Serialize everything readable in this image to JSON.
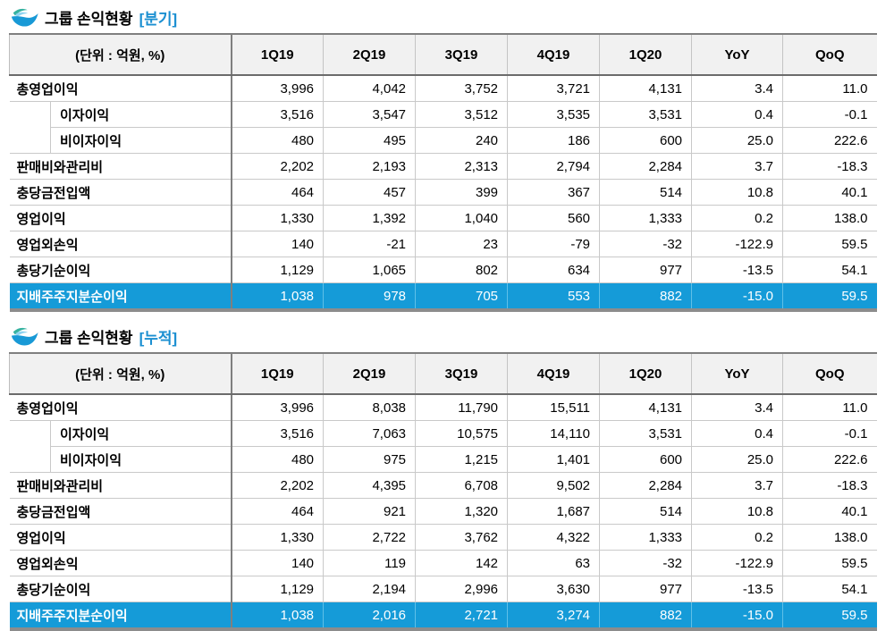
{
  "colors": {
    "highlight_row": "#159BD8",
    "tag_blue": "#1B8FD1",
    "header_bg": "#F1F1F1",
    "logo_blue": "#1899D6",
    "logo_teal": "#35B2A0"
  },
  "logo_icon": "bird-swoosh-icon",
  "sections": [
    {
      "title": "그룹 손익현황",
      "tag": "[분기]",
      "unit_label": "(단위 : 억원, %)",
      "columns": [
        "1Q19",
        "2Q19",
        "3Q19",
        "4Q19",
        "1Q20",
        "YoY",
        "QoQ"
      ],
      "rows": [
        {
          "label": "총영업이익",
          "indent": false,
          "highlight": false,
          "values": [
            "3,996",
            "4,042",
            "3,752",
            "3,721",
            "4,131",
            "3.4",
            "11.0"
          ]
        },
        {
          "label": "이자이익",
          "indent": true,
          "highlight": false,
          "values": [
            "3,516",
            "3,547",
            "3,512",
            "3,535",
            "3,531",
            "0.4",
            "-0.1"
          ]
        },
        {
          "label": "비이자이익",
          "indent": true,
          "highlight": false,
          "values": [
            "480",
            "495",
            "240",
            "186",
            "600",
            "25.0",
            "222.6"
          ]
        },
        {
          "label": "판매비와관리비",
          "indent": false,
          "highlight": false,
          "values": [
            "2,202",
            "2,193",
            "2,313",
            "2,794",
            "2,284",
            "3.7",
            "-18.3"
          ]
        },
        {
          "label": "충당금전입액",
          "indent": false,
          "highlight": false,
          "values": [
            "464",
            "457",
            "399",
            "367",
            "514",
            "10.8",
            "40.1"
          ]
        },
        {
          "label": "영업이익",
          "indent": false,
          "highlight": false,
          "values": [
            "1,330",
            "1,392",
            "1,040",
            "560",
            "1,333",
            "0.2",
            "138.0"
          ]
        },
        {
          "label": "영업외손익",
          "indent": false,
          "highlight": false,
          "values": [
            "140",
            "-21",
            "23",
            "-79",
            "-32",
            "-122.9",
            "59.5"
          ]
        },
        {
          "label": "총당기순이익",
          "indent": false,
          "highlight": false,
          "values": [
            "1,129",
            "1,065",
            "802",
            "634",
            "977",
            "-13.5",
            "54.1"
          ]
        },
        {
          "label": "지배주주지분순이익",
          "indent": false,
          "highlight": true,
          "values": [
            "1,038",
            "978",
            "705",
            "553",
            "882",
            "-15.0",
            "59.5"
          ]
        }
      ]
    },
    {
      "title": "그룹 손익현황",
      "tag": "[누적]",
      "unit_label": "(단위 : 억원, %)",
      "columns": [
        "1Q19",
        "2Q19",
        "3Q19",
        "4Q19",
        "1Q20",
        "YoY",
        "QoQ"
      ],
      "rows": [
        {
          "label": "총영업이익",
          "indent": false,
          "highlight": false,
          "values": [
            "3,996",
            "8,038",
            "11,790",
            "15,511",
            "4,131",
            "3.4",
            "11.0"
          ]
        },
        {
          "label": "이자이익",
          "indent": true,
          "highlight": false,
          "values": [
            "3,516",
            "7,063",
            "10,575",
            "14,110",
            "3,531",
            "0.4",
            "-0.1"
          ]
        },
        {
          "label": "비이자이익",
          "indent": true,
          "highlight": false,
          "values": [
            "480",
            "975",
            "1,215",
            "1,401",
            "600",
            "25.0",
            "222.6"
          ]
        },
        {
          "label": "판매비와관리비",
          "indent": false,
          "highlight": false,
          "values": [
            "2,202",
            "4,395",
            "6,708",
            "9,502",
            "2,284",
            "3.7",
            "-18.3"
          ]
        },
        {
          "label": "충당금전입액",
          "indent": false,
          "highlight": false,
          "values": [
            "464",
            "921",
            "1,320",
            "1,687",
            "514",
            "10.8",
            "40.1"
          ]
        },
        {
          "label": "영업이익",
          "indent": false,
          "highlight": false,
          "values": [
            "1,330",
            "2,722",
            "3,762",
            "4,322",
            "1,333",
            "0.2",
            "138.0"
          ]
        },
        {
          "label": "영업외손익",
          "indent": false,
          "highlight": false,
          "values": [
            "140",
            "119",
            "142",
            "63",
            "-32",
            "-122.9",
            "59.5"
          ]
        },
        {
          "label": "총당기순이익",
          "indent": false,
          "highlight": false,
          "values": [
            "1,129",
            "2,194",
            "2,996",
            "3,630",
            "977",
            "-13.5",
            "54.1"
          ]
        },
        {
          "label": "지배주주지분순이익",
          "indent": false,
          "highlight": true,
          "values": [
            "1,038",
            "2,016",
            "2,721",
            "3,274",
            "882",
            "-15.0",
            "59.5"
          ]
        }
      ]
    }
  ]
}
